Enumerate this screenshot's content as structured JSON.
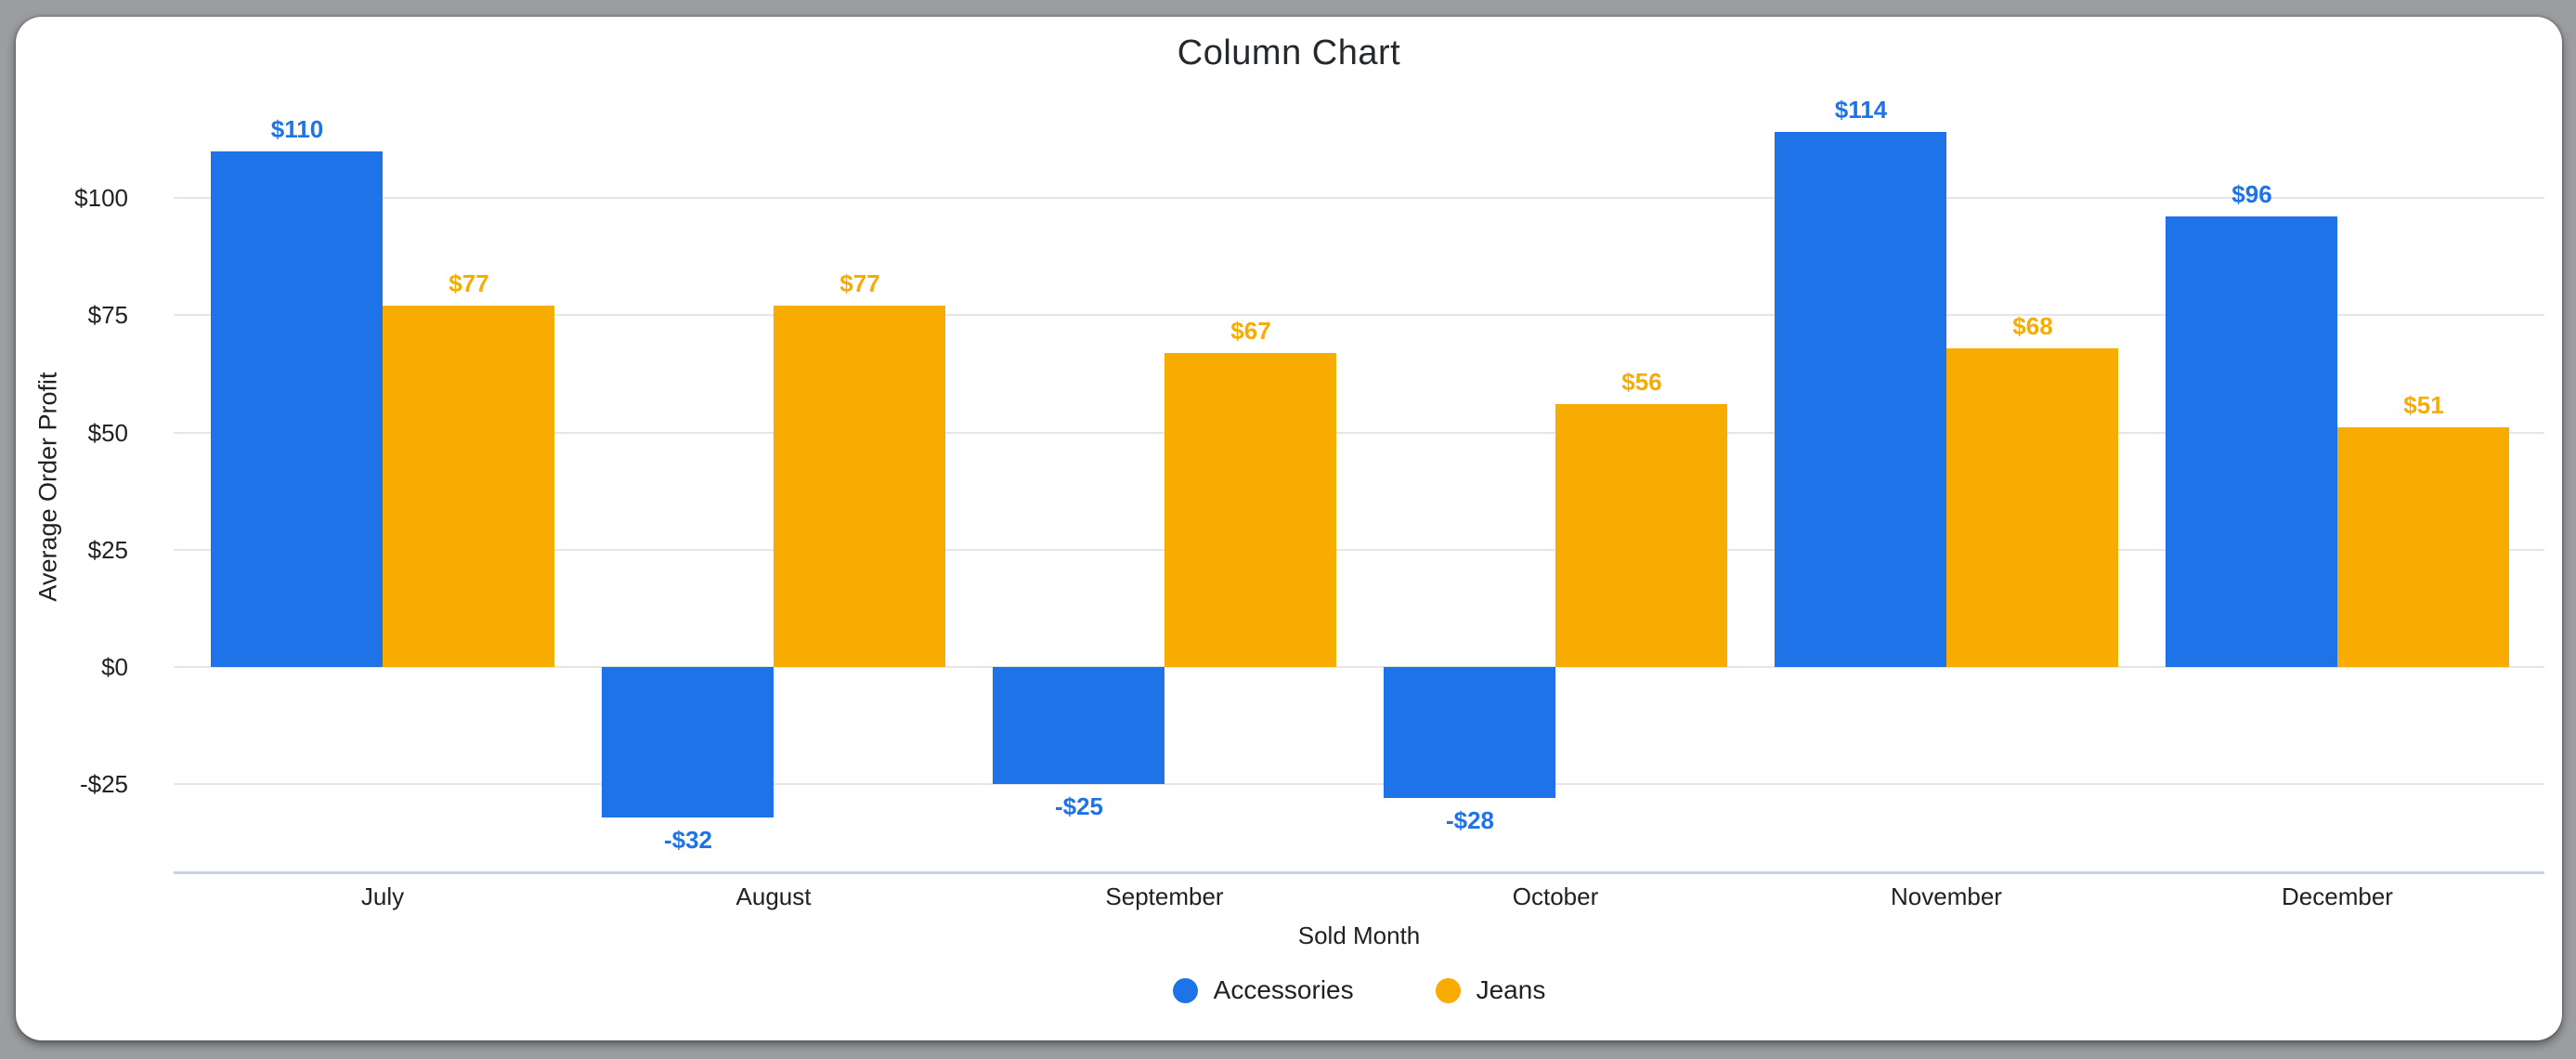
{
  "chart_data": {
    "type": "bar",
    "title": "Column Chart",
    "xlabel": "Sold Month",
    "ylabel": "Average Order Profit",
    "categories": [
      "July",
      "August",
      "September",
      "October",
      "November",
      "December"
    ],
    "series": [
      {
        "name": "Accessories",
        "color": "#1E73E8",
        "values": [
          110,
          -32,
          -25,
          -28,
          114,
          96
        ],
        "value_labels": [
          "$110",
          "-$32",
          "-$25",
          "-$28",
          "$114",
          "$96"
        ]
      },
      {
        "name": "Jeans",
        "color": "#F8AB00",
        "values": [
          77,
          77,
          67,
          56,
          68,
          51
        ],
        "value_labels": [
          "$77",
          "$77",
          "$67",
          "$56",
          "$68",
          "$51"
        ]
      }
    ],
    "y_axis": {
      "ticks": [
        {
          "value": 100,
          "label": "$100"
        },
        {
          "value": 75,
          "label": "$75"
        },
        {
          "value": 50,
          "label": "$50"
        },
        {
          "value": 25,
          "label": "$25"
        },
        {
          "value": 0,
          "label": "$0"
        },
        {
          "value": -25,
          "label": "-$25"
        }
      ],
      "range": [
        -44,
        122
      ]
    },
    "grid": true,
    "legend_position": "bottom"
  },
  "colors": {
    "background": "#9B9DA0",
    "card": "#FFFFFF",
    "gridline": "#E6E6E6",
    "axis_line": "#C8D2E6",
    "text_dark": "#202124",
    "title_text": "#24292E",
    "accessories": "#1E73E8",
    "jeans": "#F8AB00"
  }
}
